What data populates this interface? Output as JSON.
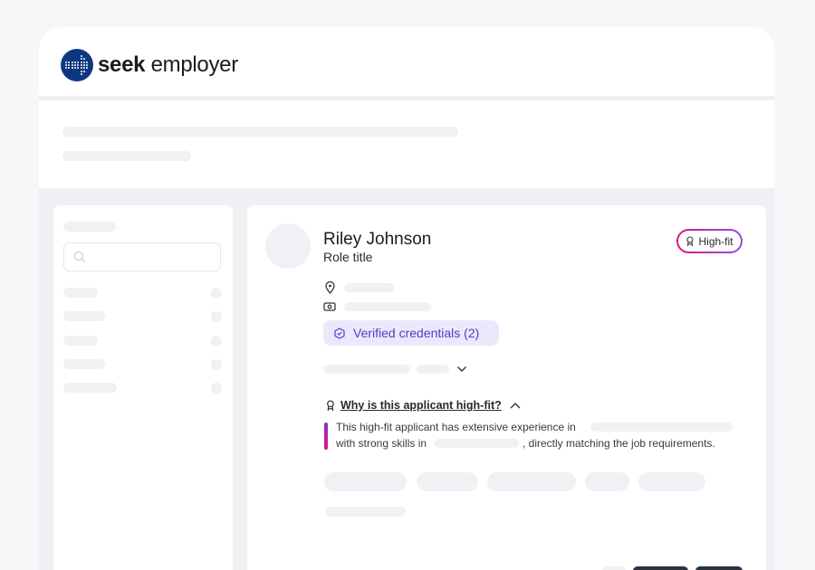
{
  "logo": {
    "brand": "seek",
    "product": "employer"
  },
  "candidate": {
    "name": "Riley Johnson",
    "role": "Role title",
    "badge": "High-fit",
    "verified": "Verified credentials (2)"
  },
  "high_fit": {
    "question": "Why is this applicant high-fit?",
    "line1": "This high-fit applicant has extensive experience in",
    "line2_prefix": "with strong skills in",
    "line2_suffix": ", directly matching the job requirements."
  },
  "icons": [
    "search-icon",
    "location-pin-icon",
    "money-icon",
    "shield-check-icon",
    "chevron-down-icon",
    "chevron-up-icon",
    "award-icon"
  ],
  "colors": {
    "accent": "#5a37c9",
    "brand": "#0d3880",
    "highfit_gradient": [
      "#e0148a",
      "#8b4ee6"
    ]
  }
}
